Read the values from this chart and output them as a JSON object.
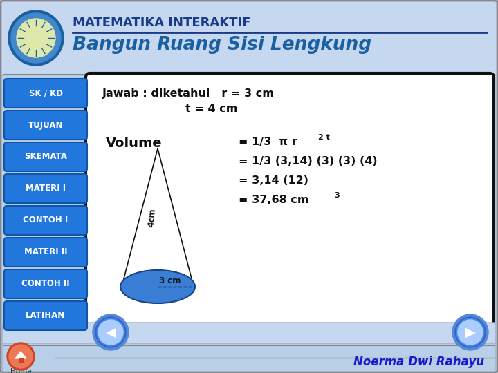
{
  "bg_color": "#b8cfe8",
  "header_bg": "#c5d8f0",
  "title1": "MATEMATIKA INTERAKTIF",
  "title2": "Bangun Ruang Sisi Lengkung",
  "title1_color": "#1a3a8a",
  "title2_color": "#1a5fa0",
  "nav_buttons": [
    "SK / KD",
    "TUJUAN",
    "SKEMATA",
    "MATERI I",
    "CONTOH I",
    "MATERI II",
    "CONTOH II",
    "LATIHAN"
  ],
  "nav_btn_color": "#2277dd",
  "nav_btn_text_color": "#ffffff",
  "content_bg": "#ffffff",
  "content_border": "#111111",
  "jawab_line1": "Jawab : diketahui   r = 3 cm",
  "jawab_line2": "t = 4 cm",
  "volume_label": "Volume",
  "eq2": "= 1/3 (3,14) (3) (3) (4)",
  "eq3": "= 3,14 (12)",
  "ellipse_color": "#3a7fd5",
  "footer_text": "Noerma Dwi Rahayu",
  "footer_color": "#1a1acc",
  "home_label": "Home",
  "nav_left_color": "#3a6fcc",
  "nav_right_color": "#3a6fcc"
}
